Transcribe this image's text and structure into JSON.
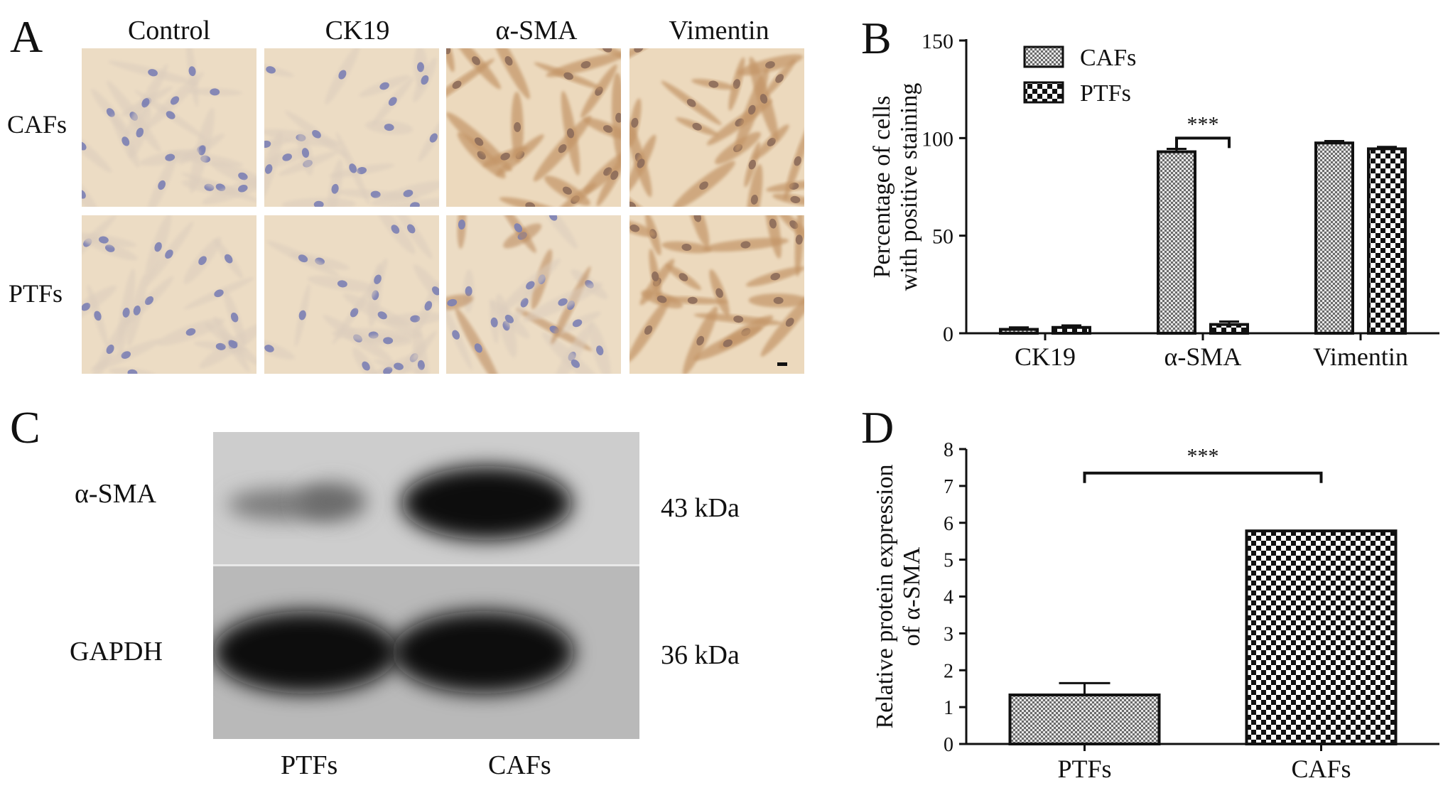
{
  "panels": {
    "a": {
      "letter": "A",
      "columns": [
        "Control",
        "CK19",
        "α-SMA",
        "Vimentin"
      ],
      "rows": [
        "CAFs",
        "PTFs"
      ]
    },
    "b": {
      "letter": "B"
    },
    "c": {
      "letter": "C",
      "bands": [
        {
          "label": "α-SMA",
          "size": "43 kDa"
        },
        {
          "label": "GAPDH",
          "size": "36 kDa"
        }
      ],
      "lanes": [
        "PTFs",
        "CAFs"
      ]
    },
    "d": {
      "letter": "D"
    }
  },
  "colors": {
    "stain_bg": "#ecdcc4",
    "nucleus": "#7b7fb4",
    "brown_cell": "#c39466",
    "blot_bg": "#c9c9c9",
    "bar_stroke": "#111111"
  },
  "chart_data": [
    {
      "type": "bar",
      "categories": [
        "CK19",
        "α-SMA",
        "Vimentin"
      ],
      "series": [
        {
          "name": "CAFs",
          "values": [
            2,
            93,
            97.5
          ],
          "errors": [
            1,
            1.5,
            1
          ]
        },
        {
          "name": "PTFs",
          "values": [
            3,
            4.5,
            94.5
          ],
          "errors": [
            1,
            1.5,
            1
          ]
        }
      ],
      "ylabel": [
        "Percentage of cells",
        "with positive staining"
      ],
      "ylim": [
        0,
        150
      ],
      "yticks": [
        "0",
        "50",
        "100",
        "150"
      ],
      "legend_position": "top-left",
      "significance": {
        "category": "α-SMA",
        "label": "***"
      }
    },
    {
      "type": "bar",
      "categories": [
        "PTFs",
        "CAFs"
      ],
      "series": [
        {
          "values": [
            1.33,
            5.78
          ],
          "errors": [
            0.32,
            0
          ]
        }
      ],
      "ylabel": [
        "Relative protein expression",
        "of α-SMA"
      ],
      "ylim": [
        0,
        8
      ],
      "yticks": [
        "0",
        "1",
        "2",
        "3",
        "4",
        "5",
        "6",
        "7",
        "8"
      ],
      "significance": {
        "label": "***"
      }
    }
  ]
}
